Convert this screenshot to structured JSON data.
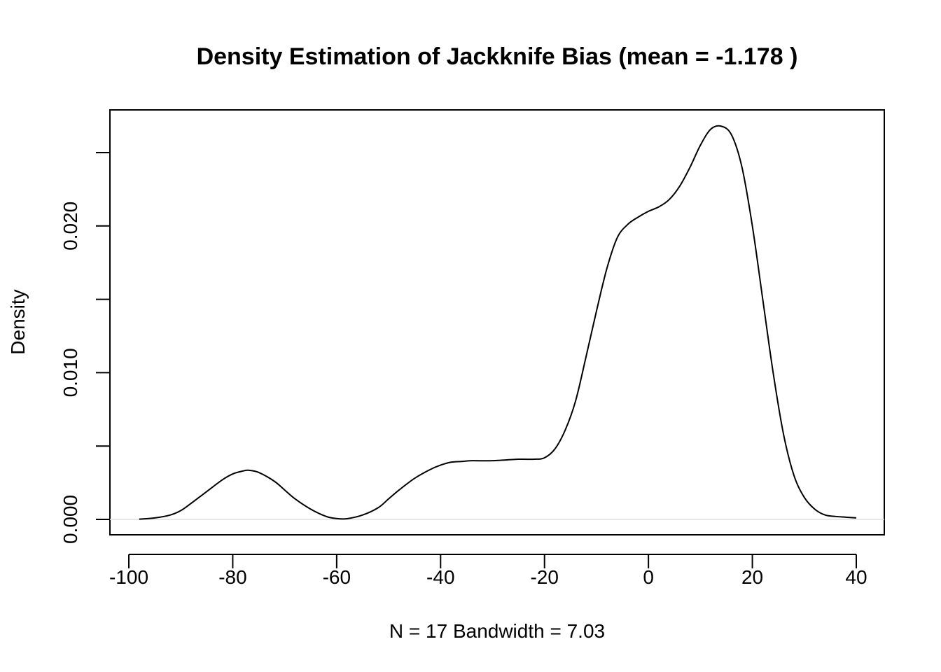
{
  "chart_data": {
    "type": "line",
    "title": "Density Estimation of Jackknife Bias (mean = -1.178 )",
    "xlabel": "N = 17   Bandwidth = 7.03",
    "ylabel": "Density",
    "xlim": [
      -100,
      40
    ],
    "ylim": [
      0,
      0.027
    ],
    "x_ticks": [
      -100,
      -80,
      -60,
      -40,
      -20,
      0,
      20,
      40
    ],
    "x_tick_labels": [
      "-100",
      "-80",
      "-60",
      "-40",
      "-20",
      "0",
      "20",
      "40"
    ],
    "y_ticks": [
      0.0,
      0.005,
      0.01,
      0.015,
      0.02,
      0.025
    ],
    "y_tick_labels": [
      "0.000",
      "",
      "0.010",
      "",
      "0.020",
      ""
    ],
    "grid": false,
    "series": [
      {
        "x": [
          -98,
          -95,
          -92,
          -90,
          -88,
          -85,
          -82,
          -80,
          -78,
          -77,
          -75,
          -72,
          -70,
          -68,
          -65,
          -62,
          -60,
          -58,
          -55,
          -52,
          -50,
          -48,
          -45,
          -42,
          -40,
          -38,
          -36,
          -34,
          -30,
          -25,
          -22,
          -20,
          -18,
          -16,
          -14,
          -12,
          -10,
          -8,
          -6,
          -4,
          -2,
          0,
          2,
          4,
          6,
          8,
          10,
          12,
          14,
          16,
          18,
          20,
          22,
          24,
          26,
          28,
          30,
          32,
          34,
          36,
          38,
          40
        ],
        "y": [
          2e-05,
          0.0001,
          0.0003,
          0.0006,
          0.0011,
          0.0019,
          0.0027,
          0.0031,
          0.0033,
          0.00335,
          0.0032,
          0.0026,
          0.002,
          0.0014,
          0.0007,
          0.0002,
          6e-05,
          5e-05,
          0.0003,
          0.0008,
          0.0014,
          0.002,
          0.0028,
          0.0034,
          0.0037,
          0.0039,
          0.00395,
          0.004,
          0.004,
          0.0041,
          0.0041,
          0.0042,
          0.0048,
          0.0061,
          0.0081,
          0.0111,
          0.0142,
          0.0171,
          0.0192,
          0.0201,
          0.0206,
          0.021,
          0.0213,
          0.0218,
          0.0227,
          0.024,
          0.0255,
          0.0266,
          0.0268,
          0.0262,
          0.024,
          0.02,
          0.015,
          0.01,
          0.0058,
          0.003,
          0.0015,
          0.0007,
          0.0003,
          0.0002,
          0.00015,
          0.0001
        ]
      }
    ]
  }
}
